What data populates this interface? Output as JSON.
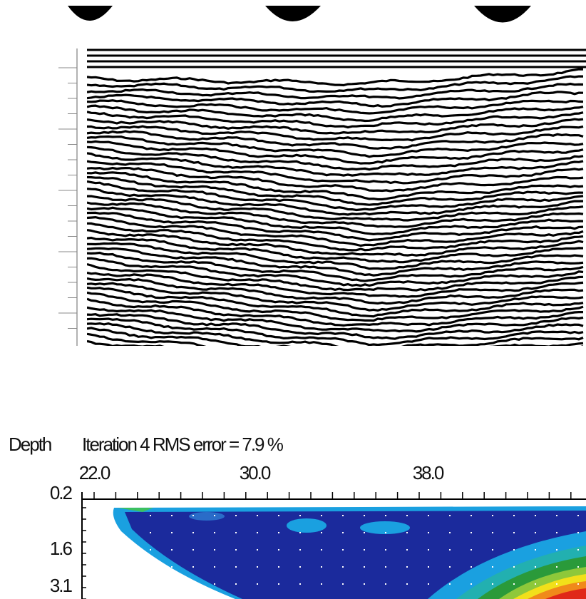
{
  "resistivity_section": {
    "depth_label": "Depth",
    "title": "Iteration 4 RMS error = 7.9 %",
    "x_labels": [
      "22.0",
      "30.0",
      "38.0"
    ],
    "depth_labels": [
      "0.2",
      "1.6",
      "3.1"
    ]
  }
}
